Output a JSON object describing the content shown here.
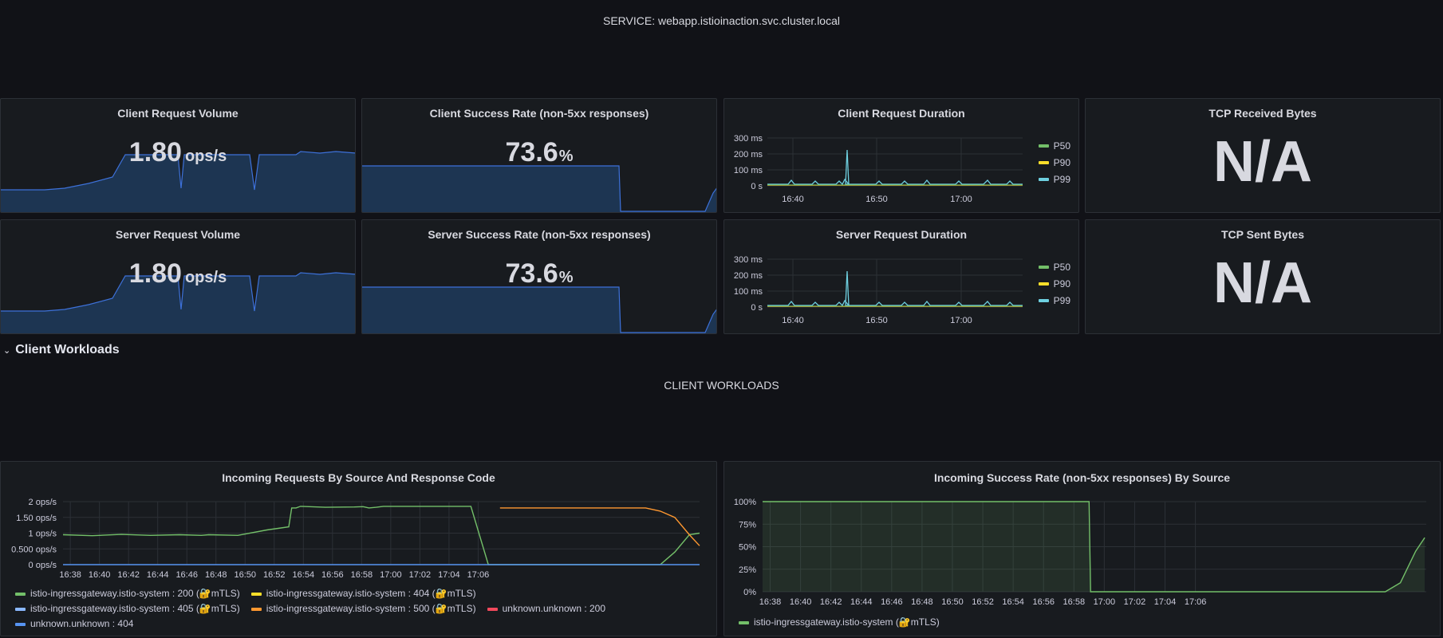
{
  "header": {
    "service_title": "SERVICE: webapp.istioinaction.svc.cluster.local"
  },
  "panels": {
    "client_request_volume": {
      "title": "Client Request Volume",
      "value": "1.80",
      "unit": "ops/s"
    },
    "client_success_rate": {
      "title": "Client Success Rate (non-5xx responses)",
      "value": "73.6",
      "unit": "%"
    },
    "client_request_duration": {
      "title": "Client Request Duration",
      "yticks": [
        "300 ms",
        "200 ms",
        "100 ms",
        "0 s"
      ],
      "xticks": [
        "16:40",
        "16:50",
        "17:00"
      ],
      "legend": [
        {
          "label": "P50",
          "color": "#73bf69"
        },
        {
          "label": "P90",
          "color": "#fade2a"
        },
        {
          "label": "P99",
          "color": "#8ab8ff"
        }
      ]
    },
    "tcp_received_bytes": {
      "title": "TCP Received Bytes",
      "value": "N/A"
    },
    "server_request_volume": {
      "title": "Server Request Volume",
      "value": "1.80",
      "unit": "ops/s"
    },
    "server_success_rate": {
      "title": "Server Success Rate (non-5xx responses)",
      "value": "73.6",
      "unit": "%"
    },
    "server_request_duration": {
      "title": "Server Request Duration",
      "yticks": [
        "300 ms",
        "200 ms",
        "100 ms",
        "0 s"
      ],
      "xticks": [
        "16:40",
        "16:50",
        "17:00"
      ],
      "legend": [
        {
          "label": "P50",
          "color": "#73bf69"
        },
        {
          "label": "P90",
          "color": "#fade2a"
        },
        {
          "label": "P99",
          "color": "#8ab8ff"
        }
      ]
    },
    "tcp_sent_bytes": {
      "title": "TCP Sent Bytes",
      "value": "N/A"
    }
  },
  "row": {
    "title": "Client Workloads"
  },
  "section": {
    "title": "CLIENT WORKLOADS"
  },
  "incoming_requests": {
    "title": "Incoming Requests By Source And Response Code",
    "legend": [
      {
        "label": "istio-ingressgateway.istio-system : 200 (🔐mTLS)",
        "color": "#73bf69"
      },
      {
        "label": "istio-ingressgateway.istio-system : 404 (🔐mTLS)",
        "color": "#fade2a"
      },
      {
        "label": "istio-ingressgateway.istio-system : 405 (🔐mTLS)",
        "color": "#8ab8ff"
      },
      {
        "label": "istio-ingressgateway.istio-system : 500 (🔐mTLS)",
        "color": "#ff9830"
      },
      {
        "label": "unknown.unknown : 200",
        "color": "#f2495c"
      },
      {
        "label": "unknown.unknown : 404",
        "color": "#5794f2"
      }
    ]
  },
  "incoming_success": {
    "title": "Incoming Success Rate (non-5xx responses) By Source",
    "legend": [
      {
        "label": "istio-ingressgateway.istio-system (🔐mTLS)",
        "color": "#73bf69"
      }
    ]
  },
  "chart_data": [
    {
      "type": "line",
      "title": "Incoming Requests By Source And Response Code",
      "ylabel": "",
      "ylim": [
        0,
        2
      ],
      "yticks": [
        "2 ops/s",
        "1.50 ops/s",
        "1 ops/s",
        "0.500 ops/s",
        "0 ops/s"
      ],
      "xticks": [
        "16:38",
        "16:40",
        "16:42",
        "16:44",
        "16:46",
        "16:48",
        "16:50",
        "16:52",
        "16:54",
        "16:56",
        "16:58",
        "17:00",
        "17:02",
        "17:04",
        "17:06"
      ],
      "x_minutes": [
        0,
        2,
        4,
        6,
        8,
        9.5,
        10,
        12,
        14,
        15.5,
        15.7,
        16,
        16.3,
        18,
        20,
        20.6,
        21,
        21.5,
        22,
        24,
        26,
        28,
        29.2,
        30,
        32,
        34,
        36,
        38,
        40,
        41,
        42,
        43,
        43.7
      ],
      "series": [
        {
          "name": "istio-ingressgateway.istio-system : 200 (🔐mTLS)",
          "values": [
            0.95,
            0.92,
            0.96,
            0.93,
            0.95,
            0.93,
            0.95,
            0.93,
            1.1,
            1.2,
            1.8,
            1.8,
            1.85,
            1.82,
            1.83,
            1.84,
            1.8,
            1.82,
            1.85,
            1.85,
            1.85,
            1.85,
            0,
            0,
            0,
            0,
            0,
            0,
            0,
            0,
            0.4,
            0.95,
            1.0
          ]
        },
        {
          "name": "istio-ingressgateway.istio-system : 500 (🔐mTLS)",
          "values": [
            null,
            null,
            null,
            null,
            null,
            null,
            null,
            null,
            null,
            null,
            null,
            null,
            null,
            null,
            null,
            null,
            null,
            null,
            null,
            null,
            null,
            null,
            null,
            1.8,
            1.8,
            1.8,
            1.8,
            1.8,
            1.8,
            1.7,
            1.5,
            0.95,
            0.6
          ]
        },
        {
          "name": "unknown.unknown : 404",
          "values": [
            0,
            0,
            0,
            0,
            0,
            0,
            0,
            0,
            0,
            0,
            0,
            0,
            0,
            0,
            0,
            0,
            0,
            0,
            0,
            0,
            0,
            0,
            0,
            0,
            0,
            0,
            0,
            0,
            0,
            0,
            0,
            0,
            0
          ]
        }
      ]
    },
    {
      "type": "area",
      "title": "Incoming Success Rate (non-5xx responses) By Source",
      "ylim": [
        0,
        100
      ],
      "yticks": [
        "100%",
        "75%",
        "50%",
        "25%",
        "0%"
      ],
      "xticks": [
        "16:38",
        "16:40",
        "16:42",
        "16:44",
        "16:46",
        "16:48",
        "16:50",
        "16:52",
        "16:54",
        "16:56",
        "16:58",
        "17:00",
        "17:02",
        "17:04",
        "17:06"
      ],
      "x_minutes": [
        0,
        21.5,
        21.6,
        41,
        42,
        43,
        43.6
      ],
      "series": [
        {
          "name": "istio-ingressgateway.istio-system (🔐mTLS)",
          "values": [
            100,
            100,
            0,
            0,
            10,
            45,
            60
          ]
        }
      ]
    }
  ]
}
